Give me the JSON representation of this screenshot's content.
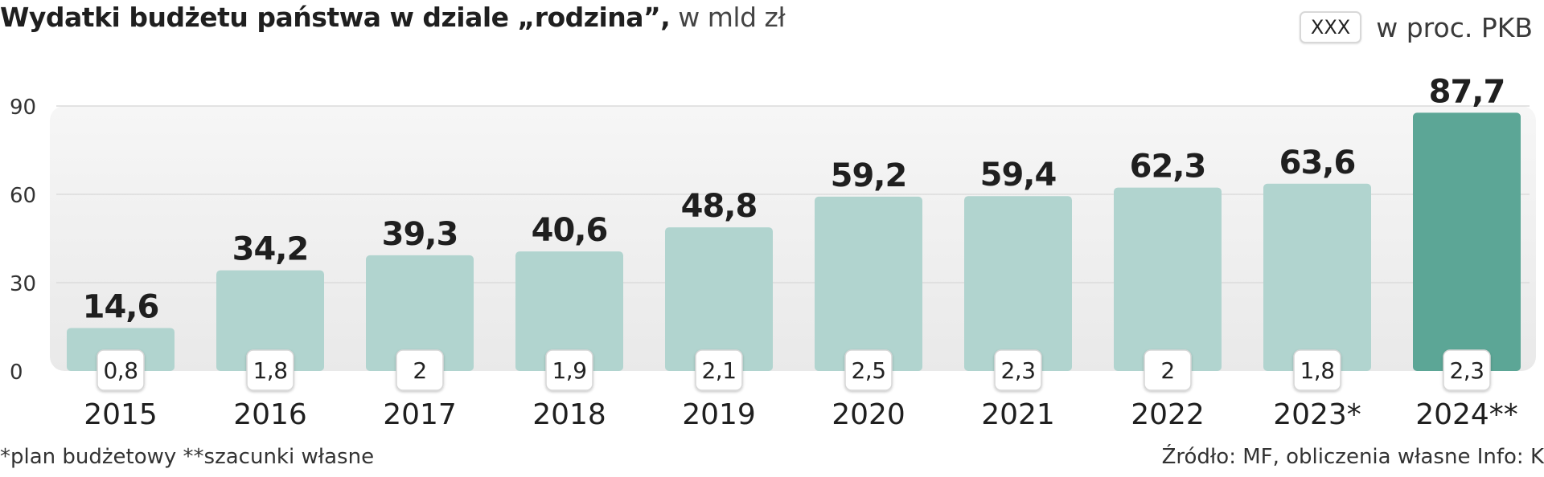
{
  "title": {
    "bold": "Wydatki budżetu państwa w dziale „rodzina”,",
    "light": " w mld zł"
  },
  "legend": {
    "box_label": "XXX",
    "text": "w proc. PKB"
  },
  "footnote": "*plan budżetowy  **szacunki własne",
  "source": "Źródło: MF, obliczenia własne  Info: K",
  "colors": {
    "bar": "#b1d4cf",
    "bar_highlight": "#5ca696",
    "plot_bg": "#efefef",
    "value_label": "#1f1f1f"
  },
  "chart_data": {
    "type": "bar",
    "categories": [
      "2015",
      "2016",
      "2017",
      "2018",
      "2019",
      "2020",
      "2021",
      "2022",
      "2023*",
      "2024**"
    ],
    "values": [
      14.6,
      34.2,
      39.3,
      40.6,
      48.8,
      59.2,
      59.4,
      62.3,
      63.6,
      87.7
    ],
    "value_labels": [
      "14,6",
      "34,2",
      "39,3",
      "40,6",
      "48,8",
      "59,2",
      "59,4",
      "62,3",
      "63,6",
      "87,7"
    ],
    "pkb_share": [
      "0,8",
      "1,8",
      "2",
      "1,9",
      "2,1",
      "2,5",
      "2,3",
      "2",
      "1,8",
      "2,3"
    ],
    "yticks": [
      "0",
      "30",
      "60",
      "90"
    ],
    "ylim": [
      0,
      90
    ],
    "highlight_index": 9,
    "grid": true
  }
}
